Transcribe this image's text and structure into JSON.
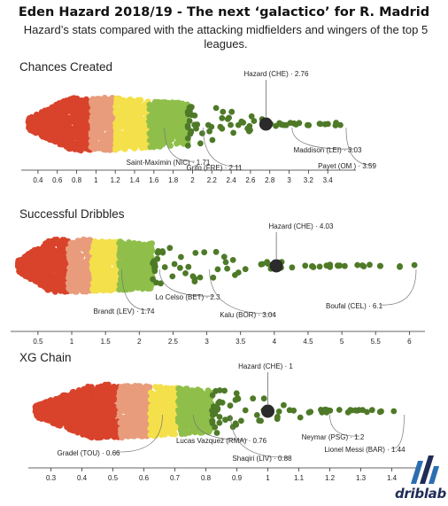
{
  "title": "Eden Hazard 2018/19 - The next ‘galactico’ for R. Madrid",
  "subtitle": "Hazard’s stats compared with the attacking midfielders and wingers of the top 5 leagues.",
  "brand": {
    "name": "driblab",
    "logo_icon": "driblab-stripes-icon"
  },
  "colors": {
    "red": "#d9432b",
    "salmon": "#e89c7c",
    "yellow": "#f4e04a",
    "lightgreen": "#8fbf4a",
    "darkgreen": "#4e7a28",
    "highlight": "#2b2b2b"
  },
  "chart_data": [
    {
      "type": "scatter",
      "title": "Chances Created",
      "axis": {
        "min": 0.3,
        "max": 3.6,
        "ticks": [
          0.4,
          0.6,
          0.8,
          1,
          1.2,
          1.4,
          1.6,
          1.8,
          2,
          2.2,
          2.4,
          2.6,
          2.8,
          3,
          3.2,
          3.4
        ],
        "tick_labels": [
          "0.4",
          "0.6",
          "0.8",
          "1",
          "1.2",
          "1.4",
          "1.6",
          "1.8",
          "2",
          "2.2",
          "2.4",
          "2.6",
          "2.8",
          "3",
          "3.2",
          "3.4"
        ]
      },
      "bands": [
        [
          0.3,
          0.95,
          "red"
        ],
        [
          0.95,
          1.2,
          "salmon"
        ],
        [
          1.2,
          1.55,
          "yellow"
        ],
        [
          1.55,
          1.95,
          "lightgreen"
        ],
        [
          1.95,
          3.6,
          "darkgreen"
        ]
      ],
      "highlight": {
        "name": "Hazard (CHE)",
        "value": 2.76
      },
      "annotations": [
        {
          "label": "Saint-Maximin (NIC) · 1.71",
          "value": 1.71
        },
        {
          "label": "Grifo (FRE) · 2.11",
          "value": 2.11
        },
        {
          "label": "Maddison (LEI) · 3.03",
          "value": 3.03
        },
        {
          "label": "Payet (OM ) · 3.59",
          "value": 3.59
        }
      ]
    },
    {
      "type": "scatter",
      "title": "Successful Dribbles",
      "axis": {
        "min": 0.2,
        "max": 6.1,
        "ticks": [
          0.5,
          1,
          1.5,
          2,
          2.5,
          3,
          3.5,
          4,
          4.5,
          5,
          5.5,
          6
        ],
        "tick_labels": [
          "0.5",
          "1",
          "1.5",
          "2",
          "2.5",
          "3",
          "3.5",
          "4",
          "4.5",
          "5",
          "5.5",
          "6"
        ]
      },
      "bands": [
        [
          0.2,
          0.95,
          "red"
        ],
        [
          0.95,
          1.3,
          "salmon"
        ],
        [
          1.3,
          1.7,
          "yellow"
        ],
        [
          1.7,
          2.2,
          "lightgreen"
        ],
        [
          2.2,
          6.1,
          "darkgreen"
        ]
      ],
      "highlight": {
        "name": "Hazard (CHE)",
        "value": 4.03
      },
      "annotations": [
        {
          "label": "Brandt (LEV) · 1.74",
          "value": 1.74
        },
        {
          "label": "Lo Celso (BET) · 2.3",
          "value": 2.3
        },
        {
          "label": "Kalu (BOR) · 3.04",
          "value": 3.04
        },
        {
          "label": "Boufal (CEL) · 6.1",
          "value": 6.1
        }
      ]
    },
    {
      "type": "scatter",
      "title": "XG Chain",
      "axis": {
        "min": 0.25,
        "max": 1.45,
        "ticks": [
          0.3,
          0.4,
          0.5,
          0.6,
          0.7,
          0.8,
          0.9,
          1,
          1.1,
          1.2,
          1.3,
          1.4
        ],
        "tick_labels": [
          "0.3",
          "0.4",
          "0.5",
          "0.6",
          "0.7",
          "0.8",
          "0.9",
          "1",
          "1.1",
          "1.2",
          "1.3",
          "1.4"
        ]
      },
      "bands": [
        [
          0.25,
          0.52,
          "red"
        ],
        [
          0.52,
          0.62,
          "salmon"
        ],
        [
          0.62,
          0.71,
          "yellow"
        ],
        [
          0.71,
          0.82,
          "lightgreen"
        ],
        [
          0.82,
          1.45,
          "darkgreen"
        ]
      ],
      "highlight": {
        "name": "Hazard (CHE)",
        "value": 1
      },
      "annotations": [
        {
          "label": "Gradel (TOU) · 0.66",
          "value": 0.66
        },
        {
          "label": "Lucas Vazquez (RMA) · 0.76",
          "value": 0.76
        },
        {
          "label": "Shaqiri (LIV) · 0.88",
          "value": 0.88
        },
        {
          "label": "Neymar (PSG) · 1.2",
          "value": 1.2
        },
        {
          "label": "Lionel Messi (BAR) · 1.44",
          "value": 1.44
        }
      ]
    }
  ]
}
